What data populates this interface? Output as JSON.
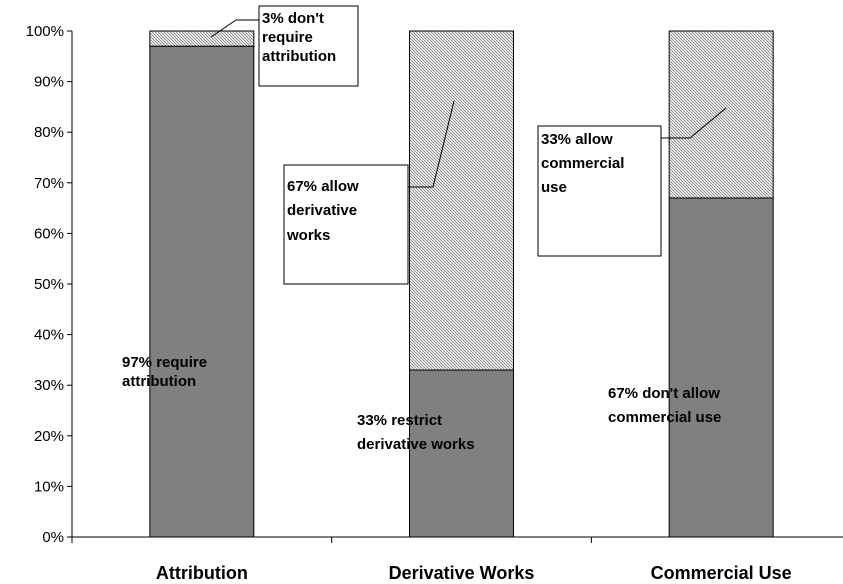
{
  "chart_data": {
    "type": "bar",
    "stacked": true,
    "categories": [
      "Attribution",
      "Derivative Works",
      "Commercial Use"
    ],
    "series": [
      {
        "values": [
          97,
          33,
          67
        ],
        "color": "#808080",
        "pattern": "solid"
      },
      {
        "values": [
          3,
          67,
          33
        ],
        "color": "#ffffff",
        "pattern": "diagonal-hatch"
      }
    ],
    "ylim": [
      0,
      100
    ],
    "ytick_labels": [
      "0%",
      "10%",
      "20%",
      "30%",
      "40%",
      "50%",
      "60%",
      "70%",
      "80%",
      "90%",
      "100%"
    ],
    "title": "",
    "xlabel": "",
    "ylabel": "",
    "grid": false,
    "legend": "none",
    "annotations": {
      "attribution_top": [
        "3% don't",
        "require",
        "attribution"
      ],
      "attribution_bottom": [
        "97% require",
        "attribution"
      ],
      "derivative_top": [
        "67% allow",
        "derivative",
        "works"
      ],
      "derivative_bottom": [
        "33% restrict",
        "derivative works"
      ],
      "commercial_top": [
        "33% allow",
        "commercial",
        "use"
      ],
      "commercial_bottom": [
        "67% don't allow",
        "commercial use"
      ]
    }
  }
}
